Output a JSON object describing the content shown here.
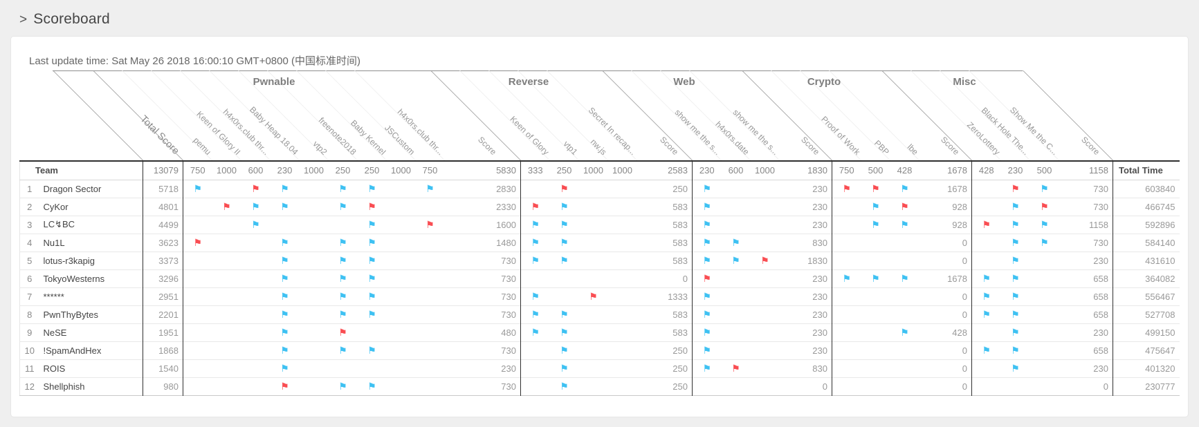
{
  "page": {
    "chevron": ">",
    "title": "Scoreboard",
    "last_update": "Last update time: Sat May 26 2018 16:00:10 GMT+0800 (中国标准时间)"
  },
  "colors": {
    "flag_blue": "#3ec1f2",
    "flag_red": "#f94d52"
  },
  "icons": {
    "flag": "⚑"
  },
  "header": {
    "team": "Team",
    "total_score_label": "Total Score",
    "total_points": "13079",
    "total_time": "Total Time"
  },
  "sections": [
    {
      "name": "Pwnable",
      "score_label": "Score",
      "total": "5830",
      "challenges": [
        {
          "name": "pemu",
          "points": "750"
        },
        {
          "name": "Keen of Glory II",
          "points": "1000"
        },
        {
          "name": "h4x0rs.club thr...",
          "points": "600"
        },
        {
          "name": "Baby Heap 18.04",
          "points": "230"
        },
        {
          "name": "vtp2",
          "points": "1000"
        },
        {
          "name": "freenote2018",
          "points": "250"
        },
        {
          "name": "Baby Kernel",
          "points": "250"
        },
        {
          "name": "JSCustom",
          "points": "1000"
        },
        {
          "name": "h4x0rs.club thr...",
          "points": "750"
        }
      ]
    },
    {
      "name": "Reverse",
      "score_label": "Score",
      "total": "2583",
      "challenges": [
        {
          "name": "Keen of Glory",
          "points": "333"
        },
        {
          "name": "vtp1",
          "points": "250"
        },
        {
          "name": "nw.js",
          "points": "1000"
        },
        {
          "name": "Secret In recap...",
          "points": "1000"
        }
      ]
    },
    {
      "name": "Web",
      "score_label": "Score",
      "total": "1830",
      "challenges": [
        {
          "name": "show me the s...",
          "points": "230"
        },
        {
          "name": "h4x0rs.date",
          "points": "600"
        },
        {
          "name": "show me the s...",
          "points": "1000"
        }
      ]
    },
    {
      "name": "Crypto",
      "score_label": "Score",
      "total": "1678",
      "challenges": [
        {
          "name": "Proof of Work",
          "points": "750"
        },
        {
          "name": "PBP",
          "points": "500"
        },
        {
          "name": "lbe",
          "points": "428"
        }
      ]
    },
    {
      "name": "Misc",
      "score_label": "Score",
      "total": "1158",
      "challenges": [
        {
          "name": "ZeroLottery",
          "points": "428"
        },
        {
          "name": "Black Hole The...",
          "points": "230"
        },
        {
          "name": "Show Me the C...",
          "points": "500"
        }
      ]
    }
  ],
  "teams": [
    {
      "rank": "1",
      "name": "Dragon Sector",
      "total": "5718",
      "total_time": "603840",
      "solves": [
        [
          "b",
          "",
          "r",
          "b",
          "",
          "b",
          "b",
          "",
          "b"
        ],
        [
          "",
          "r",
          "",
          ""
        ],
        [
          "b",
          "",
          ""
        ],
        [
          "r",
          "r",
          "b"
        ],
        [
          "",
          "r",
          "b"
        ]
      ],
      "scores": [
        "2830",
        "250",
        "230",
        "1678",
        "730"
      ]
    },
    {
      "rank": "2",
      "name": "CyKor",
      "total": "4801",
      "total_time": "466745",
      "solves": [
        [
          "",
          "r",
          "b",
          "b",
          "",
          "b",
          "r",
          "",
          ""
        ],
        [
          "r",
          "b",
          "",
          ""
        ],
        [
          "b",
          "",
          ""
        ],
        [
          "",
          "b",
          "r"
        ],
        [
          "",
          "b",
          "r"
        ]
      ],
      "scores": [
        "2330",
        "583",
        "230",
        "928",
        "730"
      ]
    },
    {
      "rank": "3",
      "name": "LC↯BC",
      "total": "4499",
      "total_time": "592896",
      "solves": [
        [
          "",
          "",
          "b",
          "",
          "",
          "",
          "b",
          "",
          "r"
        ],
        [
          "b",
          "b",
          "",
          ""
        ],
        [
          "b",
          "",
          ""
        ],
        [
          "",
          "b",
          "b"
        ],
        [
          "r",
          "b",
          "b"
        ]
      ],
      "scores": [
        "1600",
        "583",
        "230",
        "928",
        "1158"
      ]
    },
    {
      "rank": "4",
      "name": "Nu1L",
      "total": "3623",
      "total_time": "584140",
      "solves": [
        [
          "r",
          "",
          "",
          "b",
          "",
          "b",
          "b",
          "",
          ""
        ],
        [
          "b",
          "b",
          "",
          ""
        ],
        [
          "b",
          "b",
          ""
        ],
        [
          "",
          "",
          ""
        ],
        [
          "",
          "b",
          "b"
        ]
      ],
      "scores": [
        "1480",
        "583",
        "830",
        "0",
        "730"
      ]
    },
    {
      "rank": "5",
      "name": "lotus-r3kapig",
      "total": "3373",
      "total_time": "431610",
      "solves": [
        [
          "",
          "",
          "",
          "b",
          "",
          "b",
          "b",
          "",
          ""
        ],
        [
          "b",
          "b",
          "",
          ""
        ],
        [
          "b",
          "b",
          "r"
        ],
        [
          "",
          "",
          ""
        ],
        [
          "",
          "b",
          ""
        ]
      ],
      "scores": [
        "730",
        "583",
        "1830",
        "0",
        "230"
      ]
    },
    {
      "rank": "6",
      "name": "TokyoWesterns",
      "total": "3296",
      "total_time": "364082",
      "solves": [
        [
          "",
          "",
          "",
          "b",
          "",
          "b",
          "b",
          "",
          ""
        ],
        [
          "",
          "",
          "",
          ""
        ],
        [
          "r",
          "",
          ""
        ],
        [
          "b",
          "b",
          "b"
        ],
        [
          "b",
          "b",
          ""
        ]
      ],
      "scores": [
        "730",
        "0",
        "230",
        "1678",
        "658"
      ]
    },
    {
      "rank": "7",
      "name": "******",
      "total": "2951",
      "total_time": "556467",
      "solves": [
        [
          "",
          "",
          "",
          "b",
          "",
          "b",
          "b",
          "",
          ""
        ],
        [
          "b",
          "",
          "r",
          ""
        ],
        [
          "b",
          "",
          ""
        ],
        [
          "",
          "",
          ""
        ],
        [
          "b",
          "b",
          ""
        ]
      ],
      "scores": [
        "730",
        "1333",
        "230",
        "0",
        "658"
      ]
    },
    {
      "rank": "8",
      "name": "PwnThyBytes",
      "total": "2201",
      "total_time": "527708",
      "solves": [
        [
          "",
          "",
          "",
          "b",
          "",
          "b",
          "b",
          "",
          ""
        ],
        [
          "b",
          "b",
          "",
          ""
        ],
        [
          "b",
          "",
          ""
        ],
        [
          "",
          "",
          ""
        ],
        [
          "b",
          "b",
          ""
        ]
      ],
      "scores": [
        "730",
        "583",
        "230",
        "0",
        "658"
      ]
    },
    {
      "rank": "9",
      "name": "NeSE",
      "total": "1951",
      "total_time": "499150",
      "solves": [
        [
          "",
          "",
          "",
          "b",
          "",
          "r",
          "",
          "",
          ""
        ],
        [
          "b",
          "b",
          "",
          ""
        ],
        [
          "b",
          "",
          ""
        ],
        [
          "",
          "",
          "b"
        ],
        [
          "",
          "b",
          ""
        ]
      ],
      "scores": [
        "480",
        "583",
        "230",
        "428",
        "230"
      ]
    },
    {
      "rank": "10",
      "name": "!SpamAndHex",
      "total": "1868",
      "total_time": "475647",
      "solves": [
        [
          "",
          "",
          "",
          "b",
          "",
          "b",
          "b",
          "",
          ""
        ],
        [
          "",
          "b",
          "",
          ""
        ],
        [
          "b",
          "",
          ""
        ],
        [
          "",
          "",
          ""
        ],
        [
          "b",
          "b",
          ""
        ]
      ],
      "scores": [
        "730",
        "250",
        "230",
        "0",
        "658"
      ]
    },
    {
      "rank": "11",
      "name": "ROIS",
      "total": "1540",
      "total_time": "401320",
      "solves": [
        [
          "",
          "",
          "",
          "b",
          "",
          "",
          "",
          "",
          ""
        ],
        [
          "",
          "b",
          "",
          ""
        ],
        [
          "b",
          "r",
          ""
        ],
        [
          "",
          "",
          ""
        ],
        [
          "",
          "b",
          ""
        ]
      ],
      "scores": [
        "230",
        "250",
        "830",
        "0",
        "230"
      ]
    },
    {
      "rank": "12",
      "name": "Shellphish",
      "total": "980",
      "total_time": "230777",
      "solves": [
        [
          "",
          "",
          "",
          "r",
          "",
          "b",
          "b",
          "",
          ""
        ],
        [
          "",
          "b",
          "",
          ""
        ],
        [
          "",
          "",
          ""
        ],
        [
          "",
          "",
          ""
        ],
        [
          "",
          "",
          ""
        ]
      ],
      "scores": [
        "730",
        "250",
        "0",
        "0",
        "0"
      ]
    }
  ]
}
